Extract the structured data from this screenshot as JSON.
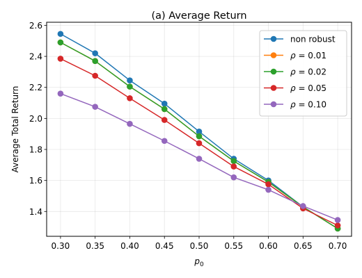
{
  "chart_data": {
    "type": "line",
    "title": "(a) Average Return",
    "xlabel": "p",
    "xlabel_sub": "0",
    "ylabel": "Average Total Return",
    "x": [
      0.3,
      0.35,
      0.4,
      0.45,
      0.5,
      0.55,
      0.6,
      0.65,
      0.7
    ],
    "x_tick_labels": [
      "0.30",
      "0.35",
      "0.40",
      "0.45",
      "0.50",
      "0.55",
      "0.60",
      "0.65",
      "0.70"
    ],
    "y_ticks": [
      1.4,
      1.6,
      1.8,
      2.0,
      2.2,
      2.4,
      2.6
    ],
    "y_tick_labels": [
      "1.4",
      "1.6",
      "1.8",
      "2.0",
      "2.2",
      "2.4",
      "2.6"
    ],
    "xlim": [
      0.28,
      0.72
    ],
    "ylim": [
      1.24,
      2.62
    ],
    "grid": true,
    "legend_position": "top-right",
    "series": [
      {
        "name": "non robust",
        "color": "#1f77b4",
        "values": [
          2.545,
          2.42,
          2.245,
          2.095,
          1.915,
          1.74,
          1.6,
          1.43,
          1.29
        ]
      },
      {
        "name": "ρ = 0.01",
        "color": "#ff7f0e",
        "values": [
          2.49,
          2.37,
          2.205,
          2.06,
          1.885,
          1.725,
          1.59,
          1.43,
          1.29
        ]
      },
      {
        "name": "ρ = 0.02",
        "color": "#2ca02c",
        "values": [
          2.49,
          2.37,
          2.205,
          2.06,
          1.885,
          1.725,
          1.59,
          1.43,
          1.29
        ]
      },
      {
        "name": "ρ = 0.05",
        "color": "#d62728",
        "values": [
          2.385,
          2.275,
          2.13,
          1.99,
          1.84,
          1.69,
          1.575,
          1.42,
          1.31
        ]
      },
      {
        "name": "ρ = 0.10",
        "color": "#9467bd",
        "values": [
          2.16,
          2.075,
          1.965,
          1.855,
          1.74,
          1.62,
          1.54,
          1.435,
          1.345
        ]
      }
    ]
  }
}
